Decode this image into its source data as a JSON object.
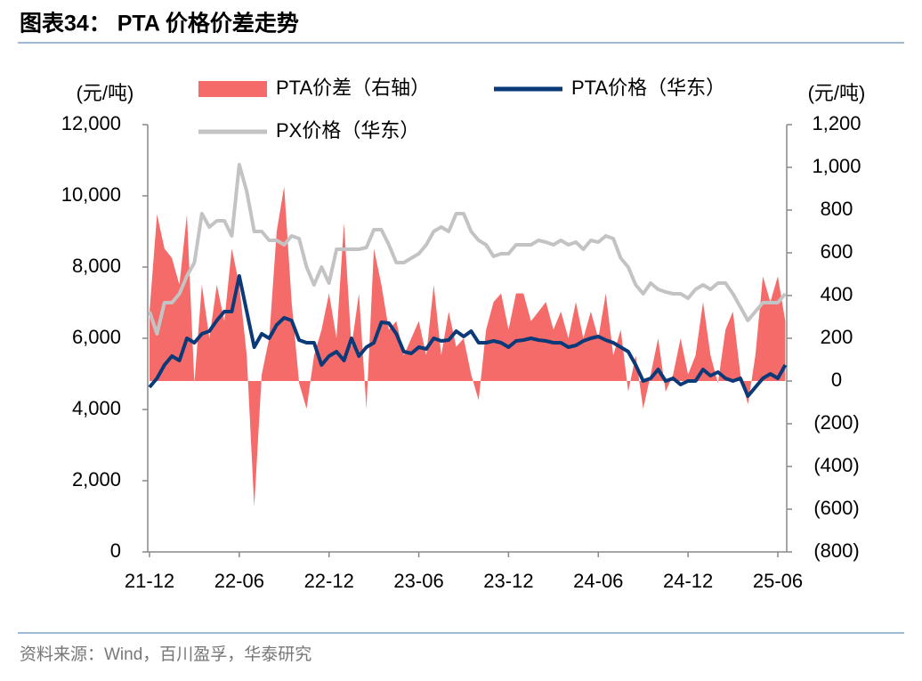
{
  "chart_data": {
    "type": "line",
    "title": "图表34：  PTA 价格价差走势",
    "source": "资料来源：Wind，百川盈孚，华泰研究",
    "ylabel": "(元/吨)",
    "y2label": "(元/吨)",
    "categories": [
      "21-12",
      null,
      null,
      null,
      null,
      null,
      null,
      null,
      null,
      null,
      null,
      null,
      "22-06",
      null,
      null,
      null,
      null,
      null,
      null,
      null,
      null,
      null,
      null,
      null,
      "22-12",
      null,
      null,
      null,
      null,
      null,
      null,
      null,
      null,
      null,
      null,
      null,
      "23-06",
      null,
      null,
      null,
      null,
      null,
      null,
      null,
      null,
      null,
      null,
      null,
      "23-12",
      null,
      null,
      null,
      null,
      null,
      null,
      null,
      null,
      null,
      null,
      null,
      "24-06",
      null,
      null,
      null,
      null,
      null,
      null,
      null,
      null,
      null,
      null,
      null,
      "24-12",
      null,
      null,
      null,
      null,
      null,
      null,
      null,
      null,
      null,
      null,
      null,
      "25-06",
      null
    ],
    "ylim": [
      0,
      12000
    ],
    "yticks": [
      0,
      {
        "value": 2000,
        "label": "2,000"
      },
      {
        "value": 4000,
        "label": "4,000"
      },
      {
        "value": 6000,
        "label": "6,000"
      },
      {
        "value": 8000,
        "label": "8,000"
      },
      {
        "value": 10000,
        "label": "10,000"
      },
      {
        "value": 12000,
        "label": "12,000"
      }
    ],
    "y2lim": [
      -800,
      1200
    ],
    "y2ticks": [
      {
        "value": -800,
        "label": "(800)"
      },
      {
        "value": -600,
        "label": "(600)"
      },
      {
        "value": -400,
        "label": "(400)"
      },
      {
        "value": -200,
        "label": "(200)"
      },
      0,
      200,
      400,
      600,
      800,
      {
        "value": 1000,
        "label": "1,000"
      },
      {
        "value": 1200,
        "label": "1,200"
      }
    ],
    "series": [
      {
        "name": "PTA价差（右轴）",
        "type": "area",
        "axis": "y2",
        "color": "#f46b69",
        "values": [
          325,
          780,
          620,
          575,
          450,
          780,
          -10,
          450,
          200,
          450,
          280,
          620,
          450,
          120,
          -590,
          30,
          200,
          700,
          910,
          370,
          -10,
          -130,
          120,
          240,
          410,
          200,
          740,
          160,
          410,
          -130,
          620,
          450,
          240,
          280,
          120,
          200,
          280,
          120,
          450,
          120,
          325,
          160,
          200,
          30,
          -90,
          240,
          370,
          410,
          240,
          410,
          410,
          280,
          325,
          370,
          240,
          325,
          200,
          370,
          200,
          325,
          200,
          410,
          120,
          240,
          -50,
          120,
          -130,
          30,
          200,
          -50,
          30,
          200,
          30,
          120,
          370,
          120,
          -10,
          240,
          325,
          30,
          -110,
          120,
          490,
          370,
          490,
          280
        ]
      },
      {
        "name": "PTA价格（华东）",
        "color": "#0b3a78",
        "values": [
          4625,
          4875,
          5250,
          5500,
          5375,
          6000,
          5875,
          6125,
          6200,
          6500,
          6750,
          6750,
          7750,
          6750,
          5750,
          6125,
          6000,
          6375,
          6575,
          6500,
          5950,
          5875,
          5875,
          5250,
          5500,
          5625,
          5375,
          6000,
          5500,
          5750,
          5875,
          6450,
          6425,
          6125,
          5625,
          5575,
          5750,
          5700,
          6000,
          5925,
          5950,
          6200,
          6050,
          6200,
          5875,
          5875,
          5925,
          5875,
          5750,
          5925,
          5950,
          6000,
          5950,
          5925,
          5875,
          5875,
          5750,
          5800,
          5925,
          6000,
          6050,
          5950,
          5875,
          5750,
          5625,
          5250,
          4800,
          4875,
          5125,
          4800,
          4875,
          4700,
          4800,
          4800,
          5125,
          4950,
          5050,
          4875,
          4800,
          4875,
          4375,
          4625,
          4875,
          5000,
          4875,
          5250
        ]
      },
      {
        "name": "PX价格（华东）",
        "color": "#c3c3c3",
        "values": [
          6750,
          6125,
          7000,
          7000,
          7250,
          7750,
          8125,
          9500,
          9125,
          9300,
          9300,
          8875,
          10875,
          10125,
          9000,
          9000,
          8750,
          8750,
          8625,
          8875,
          8800,
          8000,
          7500,
          8000,
          7550,
          8500,
          8500,
          8500,
          8500,
          8550,
          9050,
          9050,
          8625,
          8125,
          8125,
          8250,
          8375,
          8625,
          9000,
          9125,
          9000,
          9500,
          9500,
          9000,
          8750,
          8625,
          8300,
          8375,
          8375,
          8625,
          8625,
          8625,
          8750,
          8700,
          8625,
          8750,
          8625,
          8700,
          8500,
          8750,
          8700,
          8875,
          8800,
          8250,
          8000,
          7500,
          7250,
          7550,
          7375,
          7300,
          7250,
          7250,
          7125,
          7375,
          7500,
          7375,
          7550,
          7550,
          7250,
          6875,
          6500,
          6750,
          7000,
          7000,
          7000,
          7250
        ]
      }
    ]
  }
}
